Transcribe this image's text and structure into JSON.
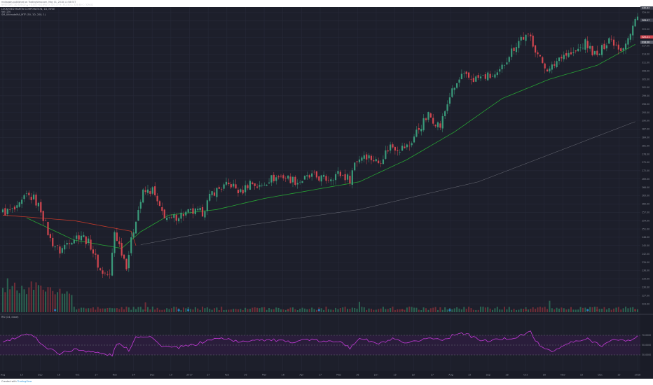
{
  "header": {
    "author_line": "mvkagwis published on TradingView.com, May 01, 2018 11:58 EST",
    "info_line": "NYSE:LMT, 1D 329.02 ▲ +0.54 (+0.16%) O: 327.77 H: 332.50 L: 325.60 C: 329.02",
    "symbol_line": "LOCKHEED MARTIN CORPORATION, 1D, NYSE",
    "indicator1": "Vol (20)",
    "indicator2": "SM_UltimateMA_MTF (50, 1D, 200, 1)"
  },
  "rsi_pane": {
    "label": "RSI (14, close)"
  },
  "footer": {
    "created_with": "Created with",
    "brand": "TradingView"
  },
  "colors": {
    "background": "#1d1f2b",
    "up": "#3a9a7a",
    "down": "#d2464f",
    "ma_fast": "#27a334",
    "ma_slow_down": "#c0392b",
    "ma_slow_up": "#b9bcc4",
    "rsi_line": "#c43ad8",
    "rsi_band": "#2a1d3b",
    "price_badge": "#d2464f"
  },
  "chart_data": {
    "type": "candlestick",
    "symbol": "LMT",
    "interval": "1D",
    "price_axis": {
      "min": 222,
      "max": 330
    },
    "x_axis_labels": [
      "Aug",
      "15",
      "Sep",
      "16",
      "Oct",
      "17",
      "Nov",
      "14",
      "Dec",
      "19",
      "2017",
      "17",
      "Feb",
      "16",
      "Mar",
      "16",
      "Apr",
      "17",
      "May",
      "16",
      "Jun",
      "15",
      "Jul",
      "17",
      "Aug",
      "15",
      "Sep",
      "18",
      "Oct",
      "16",
      "Nov",
      "15",
      "Dec",
      "15",
      "2018"
    ],
    "price_ticks": [
      "329.00",
      "326.00",
      "323.00",
      "320.00",
      "317.00",
      "314.00",
      "311.00",
      "308.00",
      "305.00",
      "302.00",
      "299.00",
      "296.00",
      "293.00",
      "290.00",
      "287.00",
      "284.00",
      "281.00",
      "278.00",
      "275.00",
      "272.00",
      "269.00",
      "266.00",
      "263.00",
      "260.00",
      "257.00",
      "254.00",
      "251.00",
      "248.00",
      "245.00",
      "242.00",
      "239.00",
      "236.00",
      "233.00",
      "230.00",
      "227.00",
      "224.00"
    ],
    "price_labels": [
      "330.63",
      "326.27",
      "320.21",
      "318.30"
    ],
    "rsi_ticks": [
      "70.0000",
      "50.0000",
      "30.0000"
    ],
    "close_path": [
      {
        "i": 0,
        "c": 257
      },
      {
        "i": 6,
        "c": 258
      },
      {
        "i": 10,
        "c": 263
      },
      {
        "i": 13,
        "c": 262
      },
      {
        "i": 16,
        "c": 258
      },
      {
        "i": 20,
        "c": 247
      },
      {
        "i": 24,
        "c": 243
      },
      {
        "i": 28,
        "c": 247
      },
      {
        "i": 33,
        "c": 249
      },
      {
        "i": 37,
        "c": 245
      },
      {
        "i": 41,
        "c": 236
      },
      {
        "i": 45,
        "c": 234
      },
      {
        "i": 47,
        "c": 250
      },
      {
        "i": 52,
        "c": 238
      },
      {
        "i": 56,
        "c": 255
      },
      {
        "i": 59,
        "c": 264
      },
      {
        "i": 63,
        "c": 265
      },
      {
        "i": 66,
        "c": 258
      },
      {
        "i": 70,
        "c": 254
      },
      {
        "i": 74,
        "c": 256
      },
      {
        "i": 79,
        "c": 257
      },
      {
        "i": 84,
        "c": 257
      },
      {
        "i": 88,
        "c": 264
      },
      {
        "i": 92,
        "c": 266
      },
      {
        "i": 96,
        "c": 267
      },
      {
        "i": 100,
        "c": 264
      },
      {
        "i": 104,
        "c": 268
      },
      {
        "i": 108,
        "c": 266
      },
      {
        "i": 112,
        "c": 269
      },
      {
        "i": 118,
        "c": 270
      },
      {
        "i": 124,
        "c": 268
      },
      {
        "i": 130,
        "c": 270
      },
      {
        "i": 136,
        "c": 269
      },
      {
        "i": 141,
        "c": 271
      },
      {
        "i": 146,
        "c": 269
      },
      {
        "i": 148,
        "c": 275
      },
      {
        "i": 152,
        "c": 278
      },
      {
        "i": 158,
        "c": 275
      },
      {
        "i": 163,
        "c": 281
      },
      {
        "i": 167,
        "c": 280
      },
      {
        "i": 171,
        "c": 281
      },
      {
        "i": 174,
        "c": 286
      },
      {
        "i": 179,
        "c": 292
      },
      {
        "i": 184,
        "c": 288
      },
      {
        "i": 188,
        "c": 299
      },
      {
        "i": 193,
        "c": 306
      },
      {
        "i": 198,
        "c": 305
      },
      {
        "i": 203,
        "c": 306
      },
      {
        "i": 208,
        "c": 306
      },
      {
        "i": 213,
        "c": 314
      },
      {
        "i": 218,
        "c": 320
      },
      {
        "i": 222,
        "c": 320
      },
      {
        "i": 226,
        "c": 312
      },
      {
        "i": 230,
        "c": 308
      },
      {
        "i": 235,
        "c": 314
      },
      {
        "i": 240,
        "c": 314
      },
      {
        "i": 245,
        "c": 318
      },
      {
        "i": 250,
        "c": 313
      },
      {
        "i": 255,
        "c": 320
      },
      {
        "i": 260,
        "c": 316
      },
      {
        "i": 264,
        "c": 321
      },
      {
        "i": 267,
        "c": 329
      }
    ],
    "ma_fast_path": [
      {
        "i": 10,
        "v": 255
      },
      {
        "i": 30,
        "v": 247
      },
      {
        "i": 50,
        "v": 244
      },
      {
        "i": 58,
        "v": 250
      },
      {
        "i": 70,
        "v": 256
      },
      {
        "i": 90,
        "v": 258
      },
      {
        "i": 110,
        "v": 262
      },
      {
        "i": 130,
        "v": 265
      },
      {
        "i": 150,
        "v": 268
      },
      {
        "i": 170,
        "v": 276
      },
      {
        "i": 190,
        "v": 286
      },
      {
        "i": 210,
        "v": 298
      },
      {
        "i": 230,
        "v": 305
      },
      {
        "i": 250,
        "v": 310
      },
      {
        "i": 267,
        "v": 318
      }
    ],
    "ma_slow_path": [
      {
        "i": 0,
        "v": 256
      },
      {
        "i": 30,
        "v": 254
      },
      {
        "i": 55,
        "v": 250
      },
      {
        "i": 56,
        "v": 245
      },
      {
        "i": 100,
        "v": 252
      },
      {
        "i": 150,
        "v": 258
      },
      {
        "i": 200,
        "v": 268
      },
      {
        "i": 267,
        "v": 290
      }
    ],
    "rsi_path": [
      {
        "i": 0,
        "v": 56
      },
      {
        "i": 8,
        "v": 68
      },
      {
        "i": 12,
        "v": 74
      },
      {
        "i": 18,
        "v": 45
      },
      {
        "i": 24,
        "v": 33
      },
      {
        "i": 30,
        "v": 41
      },
      {
        "i": 36,
        "v": 38
      },
      {
        "i": 42,
        "v": 32
      },
      {
        "i": 46,
        "v": 29
      },
      {
        "i": 48,
        "v": 54
      },
      {
        "i": 53,
        "v": 40
      },
      {
        "i": 56,
        "v": 67
      },
      {
        "i": 62,
        "v": 69
      },
      {
        "i": 66,
        "v": 50
      },
      {
        "i": 72,
        "v": 44
      },
      {
        "i": 80,
        "v": 50
      },
      {
        "i": 88,
        "v": 62
      },
      {
        "i": 94,
        "v": 64
      },
      {
        "i": 100,
        "v": 55
      },
      {
        "i": 106,
        "v": 62
      },
      {
        "i": 114,
        "v": 60
      },
      {
        "i": 120,
        "v": 56
      },
      {
        "i": 128,
        "v": 62
      },
      {
        "i": 136,
        "v": 56
      },
      {
        "i": 142,
        "v": 60
      },
      {
        "i": 146,
        "v": 42
      },
      {
        "i": 150,
        "v": 65
      },
      {
        "i": 158,
        "v": 52
      },
      {
        "i": 164,
        "v": 62
      },
      {
        "i": 170,
        "v": 52
      },
      {
        "i": 178,
        "v": 64
      },
      {
        "i": 186,
        "v": 62
      },
      {
        "i": 192,
        "v": 76
      },
      {
        "i": 196,
        "v": 70
      },
      {
        "i": 202,
        "v": 58
      },
      {
        "i": 210,
        "v": 62
      },
      {
        "i": 216,
        "v": 66
      },
      {
        "i": 222,
        "v": 77
      },
      {
        "i": 226,
        "v": 46
      },
      {
        "i": 232,
        "v": 38
      },
      {
        "i": 238,
        "v": 54
      },
      {
        "i": 246,
        "v": 62
      },
      {
        "i": 252,
        "v": 50
      },
      {
        "i": 258,
        "v": 62
      },
      {
        "i": 264,
        "v": 58
      },
      {
        "i": 267,
        "v": 70
      }
    ]
  }
}
